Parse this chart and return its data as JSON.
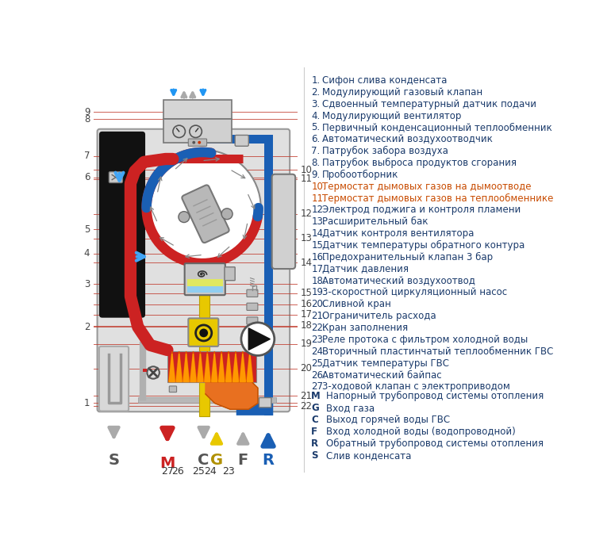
{
  "items_1_9": [
    "Сифон слива конденсата",
    "Модулирующий газовый клапан",
    "Сдвоенный температурный датчик подачи",
    "Модулирующий вентилятор",
    "Первичный конденсационный теплообменник",
    "Автоматический воздухоотводчик",
    "Патрубок забора воздуха",
    "Патрубок выброса продуктов сгорания",
    "Пробоотборник"
  ],
  "items_10_27": [
    "Термостат дымовых газов на дымоотводе",
    "Термостат дымовых газов на теплообменнике",
    "Электрод поджига и контроля пламени",
    "Расширительный бак",
    "Датчик контроля вентилятора",
    "Датчик температуры обратного контура",
    "Предохранительный клапан 3 бар",
    "Датчик давления",
    "Автоматический воздухоотвод",
    "3-скоростной циркуляционный насос",
    "Сливной кран",
    "Ограничитель расхода",
    "Кран заполнения",
    "Реле протока с фильтром холодной воды",
    "Вторичный пластинчатый теплообменник ГВС",
    "Датчик температуры ГВС",
    "Автоматический байпас",
    "3-ходовой клапан с электроприводом"
  ],
  "legend": [
    [
      "M",
      "Напорный трубопровод системы отопления"
    ],
    [
      "G",
      "Вход газа"
    ],
    [
      "C",
      "Выход горячей воды ГВС"
    ],
    [
      "F",
      "Вход холодной воды (водопроводной)"
    ],
    [
      "R",
      "Обратный трубопровод системы отопления"
    ],
    [
      "S",
      "Слив конденсата"
    ]
  ],
  "left_ref_lines": {
    "1": 555,
    "2": 430,
    "3": 360,
    "4": 310,
    "5": 270,
    "6": 185,
    "7": 150,
    "8": 90,
    "9": 78
  },
  "right_ref_lines": {
    "10": 173,
    "11": 188,
    "12": 245,
    "13": 285,
    "14": 325,
    "15": 375,
    "16": 393,
    "17": 410,
    "18": 428,
    "19": 458,
    "20": 498,
    "21": 543,
    "22": 560
  },
  "text_dark": "#1a3a6b",
  "text_orange": "#c84b00",
  "line_red": "#c0392b",
  "pipe_red": "#cc2222",
  "pipe_blue": "#1a5fb4",
  "pipe_yellow": "#e8c800",
  "pipe_grey": "#aaaaaa",
  "pipe_orange": "#e87020"
}
